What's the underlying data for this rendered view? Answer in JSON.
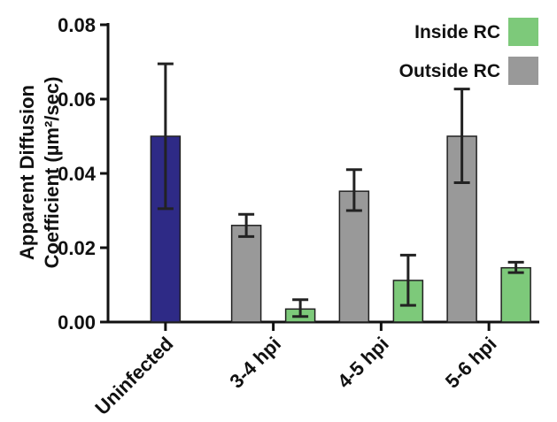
{
  "chart_data": {
    "type": "bar",
    "title": "",
    "xlabel": "",
    "ylabel_lines": [
      "Apparent Diffusion",
      "Coefficient (µm²/sec)"
    ],
    "ylim": [
      0,
      0.08
    ],
    "yticks": [
      "0.00",
      "0.02",
      "0.04",
      "0.06",
      "0.08"
    ],
    "categories": [
      "Uninfected",
      "3-4 hpi",
      "4-5 hpi",
      "5-6 hpi"
    ],
    "grid": false,
    "legend_position": "top-right",
    "legend": [
      {
        "label": "Inside RC",
        "color": "#7dc97a"
      },
      {
        "label": "Outside RC",
        "color": "#999999"
      }
    ],
    "bars": [
      {
        "category": "Uninfected",
        "group": "Uninfected",
        "value": 0.05,
        "err_low": 0.0305,
        "err_high": 0.0695,
        "color": "#2e2a86"
      },
      {
        "category": "3-4 hpi",
        "group": "Outside RC",
        "value": 0.026,
        "err_low": 0.023,
        "err_high": 0.029,
        "color": "#999999"
      },
      {
        "category": "3-4 hpi",
        "group": "Inside RC",
        "value": 0.0035,
        "err_low": 0.0015,
        "err_high": 0.006,
        "color": "#7dc97a"
      },
      {
        "category": "4-5 hpi",
        "group": "Outside RC",
        "value": 0.0352,
        "err_low": 0.03,
        "err_high": 0.041,
        "color": "#999999"
      },
      {
        "category": "4-5 hpi",
        "group": "Inside RC",
        "value": 0.0112,
        "err_low": 0.0045,
        "err_high": 0.018,
        "color": "#7dc97a"
      },
      {
        "category": "5-6 hpi",
        "group": "Outside RC",
        "value": 0.05,
        "err_low": 0.0375,
        "err_high": 0.0627,
        "color": "#999999"
      },
      {
        "category": "5-6 hpi",
        "group": "Inside RC",
        "value": 0.0146,
        "err_low": 0.0133,
        "err_high": 0.0161,
        "color": "#7dc97a"
      }
    ]
  }
}
